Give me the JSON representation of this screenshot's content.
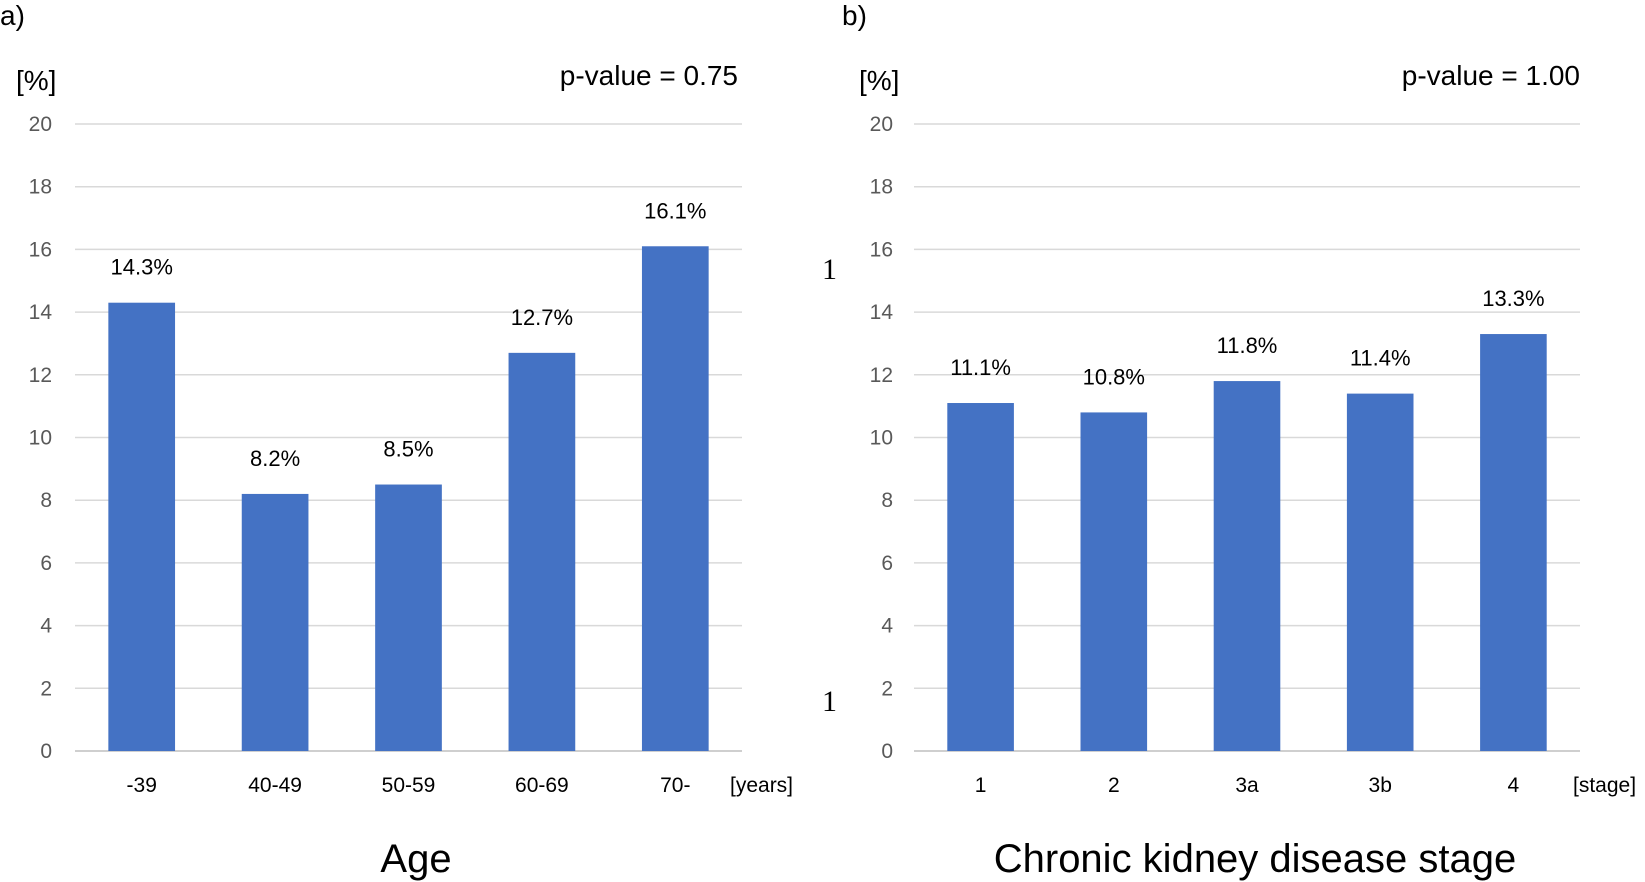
{
  "stray_marks": [
    "1",
    "1"
  ],
  "chart_data": [
    {
      "type": "bar",
      "panel_label": "a)",
      "title": "Age",
      "xlabel": "Age",
      "x_unit": "[years]",
      "ylabel": "[%]",
      "ylim": [
        0,
        20
      ],
      "yticks": [
        0,
        2,
        4,
        6,
        8,
        10,
        12,
        14,
        16,
        18,
        20
      ],
      "grid": true,
      "annotation": "p-value = 0.75",
      "categories": [
        "-39",
        "40-49",
        "50-59",
        "60-69",
        "70-"
      ],
      "values": [
        14.3,
        8.2,
        8.5,
        12.7,
        16.1
      ],
      "data_labels": [
        "14.3%",
        "8.2%",
        "8.5%",
        "12.7%",
        "16.1%"
      ],
      "color": "#4472c4"
    },
    {
      "type": "bar",
      "panel_label": "b)",
      "title": "Chronic kidney disease stage",
      "xlabel": "Chronic kidney disease stage",
      "x_unit": "[stage]",
      "ylabel": "[%]",
      "ylim": [
        0,
        20
      ],
      "yticks": [
        0,
        2,
        4,
        6,
        8,
        10,
        12,
        14,
        16,
        18,
        20
      ],
      "grid": true,
      "annotation": "p-value = 1.00",
      "categories": [
        "1",
        "2",
        "3a",
        "3b",
        "4"
      ],
      "values": [
        11.1,
        10.8,
        11.8,
        11.4,
        13.3
      ],
      "data_labels": [
        "11.1%",
        "10.8%",
        "11.8%",
        "11.4%",
        "13.3%"
      ],
      "color": "#4472c4"
    }
  ]
}
